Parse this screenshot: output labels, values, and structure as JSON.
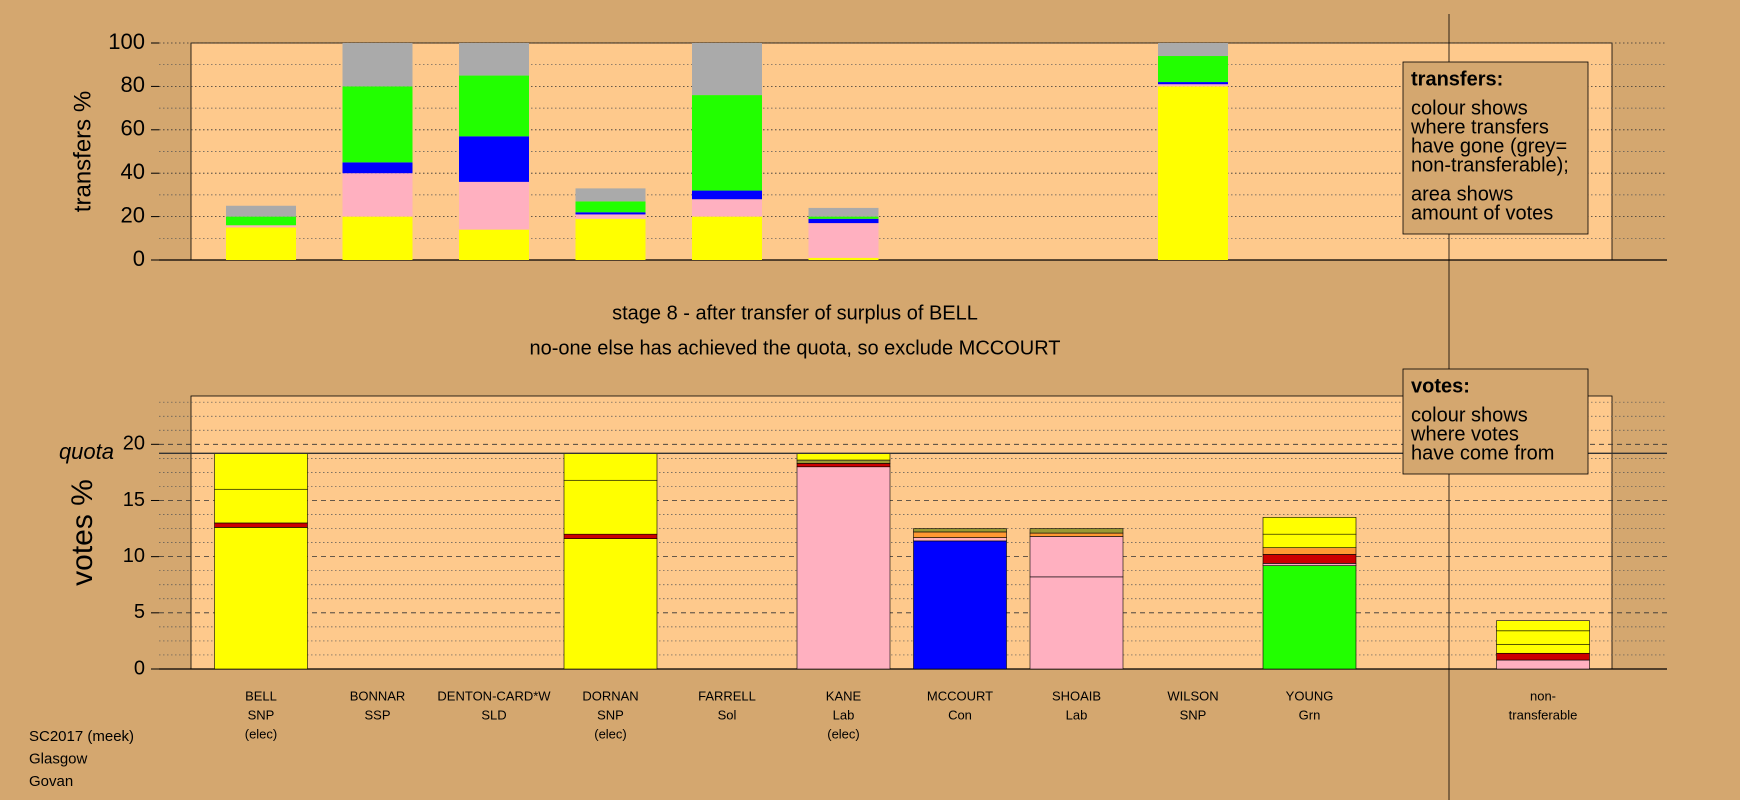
{
  "chart_data": [
    {
      "type": "bar",
      "stacked": true,
      "ylabel": "transfers %",
      "ylim": [
        0,
        100
      ],
      "yticks": [
        0,
        20,
        40,
        60,
        80,
        100
      ],
      "grid": true,
      "series": [
        {
          "color": "#ffff00",
          "values": [
            15,
            20,
            14,
            19,
            20,
            1,
            0,
            0,
            80,
            0,
            0
          ]
        },
        {
          "color": "#ffb0c0",
          "values": [
            1,
            20,
            22,
            2,
            8,
            16,
            0,
            0,
            1,
            0,
            0
          ]
        },
        {
          "color": "#0000ff",
          "values": [
            0,
            5,
            21,
            1,
            4,
            2,
            0,
            0,
            1,
            0,
            0
          ]
        },
        {
          "color": "#22ff00",
          "values": [
            4,
            35,
            28,
            5,
            44,
            1,
            0,
            0,
            12,
            0,
            0
          ]
        },
        {
          "color": "#aaaaaa",
          "values": [
            5,
            20,
            15,
            6,
            24,
            4,
            0,
            0,
            6,
            0,
            0
          ]
        }
      ]
    },
    {
      "type": "bar",
      "stacked": true,
      "ylabel": "votes %",
      "ylim": [
        0,
        24.3
      ],
      "yticks": [
        0,
        5,
        10,
        15,
        20
      ],
      "grid": true,
      "quota": {
        "value": 19.2,
        "label": "quota"
      },
      "categories": [
        "BELL",
        "BONNAR",
        "DENTON-CARD*W",
        "DORNAN",
        "FARRELL",
        "KANE",
        "MCCOURT",
        "SHOAIB",
        "WILSON",
        "YOUNG",
        "non-"
      ],
      "parties": [
        "SNP",
        "SSP",
        "SLD",
        "SNP",
        "Sol",
        "Lab",
        "Con",
        "Lab",
        "SNP",
        "Grn",
        "transferable"
      ],
      "notes": [
        "(elec)",
        null,
        null,
        "(elec)",
        null,
        "(elec)",
        null,
        null,
        null,
        null,
        null
      ],
      "series": [
        {
          "color": "#ffff00",
          "values": [
            12.6,
            0,
            0,
            11.6,
            0,
            0,
            0,
            0,
            0,
            0,
            0
          ]
        },
        {
          "color": "#ffb0c0",
          "values": [
            0,
            0,
            0,
            0,
            0,
            18,
            0,
            8.2,
            0,
            0,
            0.8
          ]
        },
        {
          "color": "#0000ff",
          "values": [
            0,
            0,
            0,
            0,
            0,
            0,
            11.4,
            0,
            0,
            0,
            0
          ]
        },
        {
          "color": "#22ff00",
          "values": [
            0,
            0,
            0,
            0,
            0,
            0,
            0,
            0,
            0,
            9.2,
            0
          ]
        },
        {
          "color": "#ffb0c0",
          "values": [
            0,
            0,
            0,
            0,
            0,
            0,
            0.3,
            3.6,
            0,
            0.2,
            0
          ]
        },
        {
          "color": "#cc0000",
          "values": [
            0.4,
            0,
            0,
            0.4,
            0,
            0.3,
            0,
            0,
            0,
            0.8,
            0.6
          ]
        },
        {
          "color": "#ff9933",
          "values": [
            0,
            0,
            0,
            0,
            0,
            0,
            0.5,
            0.3,
            0,
            0.6,
            0
          ]
        },
        {
          "color": "#999933",
          "values": [
            0,
            0,
            0,
            0,
            0,
            0.3,
            0.3,
            0.4,
            0,
            0,
            0
          ]
        },
        {
          "color": "#ffff00",
          "values": [
            3.0,
            0,
            0,
            4.8,
            0,
            0.6,
            0,
            0,
            0,
            1.2,
            0.8
          ]
        },
        {
          "color": "#ffff00",
          "values": [
            3.2,
            0,
            0,
            2.4,
            0,
            0,
            0,
            0,
            0,
            1.5,
            1.2
          ]
        },
        {
          "color": "#ffff00",
          "values": [
            0,
            0,
            0,
            0,
            0,
            0,
            0,
            0,
            0,
            0,
            0.9
          ]
        }
      ]
    }
  ],
  "title_lines": [
    "stage 8 - after transfer of surplus of BELL",
    "no-one else has achieved the quota, so exclude MCCOURT"
  ],
  "transfers_note": {
    "heading": "transfers:",
    "lines": [
      "colour shows",
      "where transfers",
      "have gone (grey=",
      "non-transferable);",
      "area shows",
      "amount of votes"
    ]
  },
  "votes_note": {
    "heading": "votes:",
    "lines": [
      "colour shows",
      "where votes",
      "have come from"
    ]
  },
  "footer": [
    "SC2017 (meek)",
    "Glasgow",
    "Govan"
  ]
}
